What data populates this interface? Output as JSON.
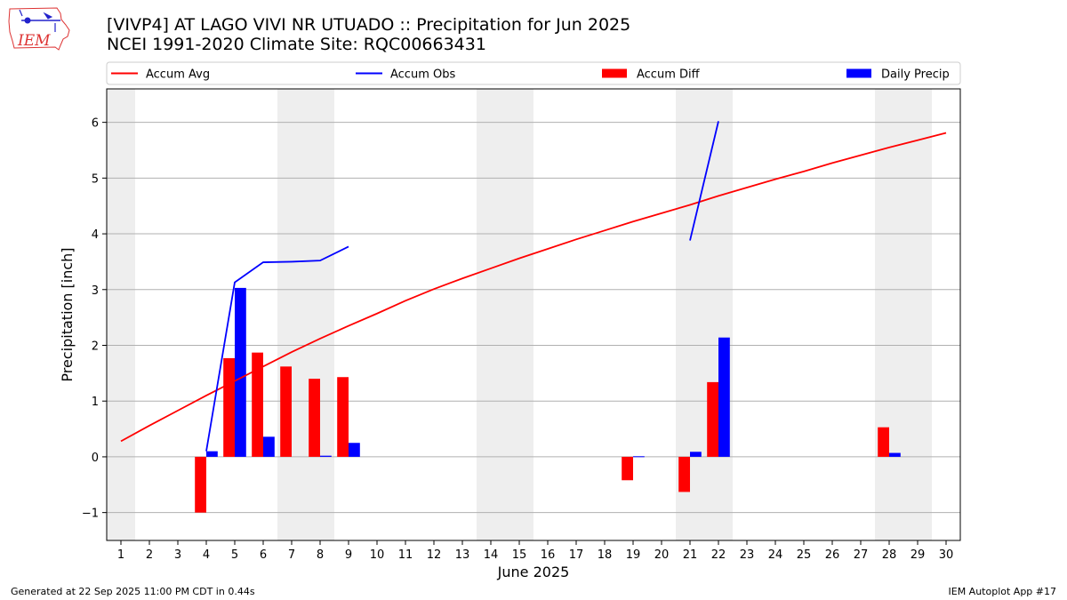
{
  "header": {
    "logo_text": "IEM",
    "title_line1": "[VIVP4] AT LAGO VIVI NR UTUADO :: Precipitation for Jun 2025",
    "title_line2": "NCEI 1991-2020 Climate Site: RQC00663431"
  },
  "footer": {
    "generated": "Generated at 22 Sep 2025 11:00 PM CDT in 0.44s",
    "app": "IEM Autoplot App #17"
  },
  "chart_data": {
    "type": "bar",
    "xlabel": "June 2025",
    "ylabel": "Precipitation [inch]",
    "xlim": [
      0.5,
      30.5
    ],
    "ylim": [
      -1.5,
      6.6
    ],
    "x_ticks": [
      1,
      2,
      3,
      4,
      5,
      6,
      7,
      8,
      9,
      10,
      11,
      12,
      13,
      14,
      15,
      16,
      17,
      18,
      19,
      20,
      21,
      22,
      23,
      24,
      25,
      26,
      27,
      28,
      29,
      30
    ],
    "y_ticks": [
      -1,
      0,
      1,
      2,
      3,
      4,
      5,
      6
    ],
    "y_tick_labels": [
      "−1",
      "0",
      "1",
      "2",
      "3",
      "4",
      "5",
      "6"
    ],
    "grid": "horizontal",
    "legend_placement": "top",
    "weekend_shading": [
      [
        0.5,
        1.5
      ],
      [
        6.5,
        8.5
      ],
      [
        13.5,
        15.5
      ],
      [
        20.5,
        22.5
      ],
      [
        27.5,
        29.5
      ]
    ],
    "colors": {
      "accum_avg": "#ff0000",
      "accum_obs": "#0000ff",
      "accum_diff": "#ff0000",
      "daily_precip": "#0000ff",
      "weekend": "#eeeeee",
      "grid": "#b0b0b0"
    },
    "legend": [
      {
        "key": "accum_avg",
        "label": "Accum Avg",
        "kind": "line"
      },
      {
        "key": "accum_obs",
        "label": "Accum Obs",
        "kind": "line"
      },
      {
        "key": "accum_diff",
        "label": "Accum Diff",
        "kind": "bar"
      },
      {
        "key": "daily_precip",
        "label": "Daily Precip",
        "kind": "bar"
      }
    ],
    "series": {
      "accum_avg": {
        "name": "Accum Avg",
        "x": [
          1,
          2,
          3,
          4,
          5,
          6,
          7,
          8,
          9,
          10,
          11,
          12,
          13,
          14,
          15,
          16,
          17,
          18,
          19,
          20,
          21,
          22,
          23,
          24,
          25,
          26,
          27,
          28,
          29,
          30
        ],
        "values": [
          0.28,
          0.56,
          0.83,
          1.1,
          1.36,
          1.62,
          1.88,
          2.12,
          2.35,
          2.57,
          2.8,
          3.01,
          3.2,
          3.38,
          3.56,
          3.73,
          3.9,
          4.06,
          4.22,
          4.37,
          4.52,
          4.68,
          4.83,
          4.98,
          5.12,
          5.27,
          5.41,
          5.55,
          5.68,
          5.81
        ]
      },
      "accum_obs": {
        "name": "Accum Obs",
        "segments": [
          {
            "x": [
              4,
              5,
              6,
              7,
              8,
              9
            ],
            "values": [
              0.1,
              3.13,
              3.49,
              3.5,
              3.52,
              3.77
            ]
          },
          {
            "x": [
              21,
              22
            ],
            "values": [
              3.88,
              6.02
            ]
          }
        ]
      },
      "accum_diff": {
        "name": "Accum Diff",
        "x": [
          4,
          5,
          6,
          7,
          8,
          9,
          19,
          21,
          22,
          28
        ],
        "values": [
          -1.0,
          1.77,
          1.87,
          1.62,
          1.4,
          1.43,
          -0.42,
          -0.63,
          1.34,
          0.53
        ]
      },
      "daily_precip": {
        "name": "Daily Precip",
        "x": [
          4,
          5,
          6,
          8,
          9,
          19,
          21,
          22,
          28
        ],
        "values": [
          0.1,
          3.03,
          0.36,
          0.02,
          0.25,
          0.01,
          0.09,
          2.14,
          0.07
        ]
      }
    }
  }
}
